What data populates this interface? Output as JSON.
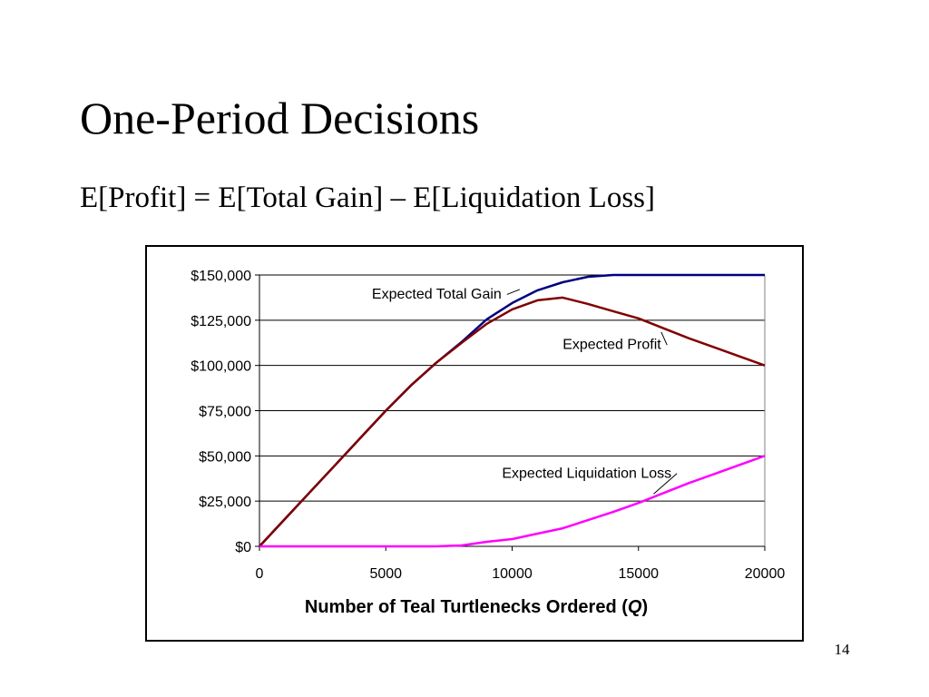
{
  "slide": {
    "title": "One-Period Decisions",
    "subtitle": "E[Profit] = E[Total Gain] – E[Liquidation Loss]",
    "page_number": "14"
  },
  "chart_data": {
    "type": "line",
    "xlabel_prefix": "Number of Teal Turtlenecks Ordered (",
    "xlabel_variable": "Q",
    "xlabel_suffix": ")",
    "ylabel": "",
    "xlim": [
      0,
      20000
    ],
    "ylim": [
      0,
      150000
    ],
    "x_ticks": [
      0,
      5000,
      10000,
      15000,
      20000
    ],
    "x_tick_labels": [
      "0",
      "5000",
      "10000",
      "15000",
      "20000"
    ],
    "y_ticks": [
      0,
      25000,
      50000,
      75000,
      100000,
      125000,
      150000
    ],
    "y_tick_labels": [
      "$0",
      "$25,000",
      "$50,000",
      "$75,000",
      "$100,000",
      "$125,000",
      "$150,000"
    ],
    "grid": "horizontal",
    "x": [
      0,
      1000,
      2000,
      3000,
      4000,
      5000,
      6000,
      7000,
      8000,
      9000,
      10000,
      11000,
      12000,
      13000,
      14000,
      15000,
      16000,
      17000,
      18000,
      19000,
      20000
    ],
    "series": [
      {
        "name": "Expected Total Gain",
        "color": "#000080",
        "values": [
          0,
          15000,
          30000,
          45000,
          60000,
          75000,
          89000,
          101500,
          113000,
          125500,
          134500,
          141500,
          146000,
          149000,
          150000,
          150000,
          150000,
          150000,
          150000,
          150000,
          150000
        ]
      },
      {
        "name": "Expected Profit",
        "color": "#800000",
        "values": [
          0,
          15000,
          30000,
          45000,
          60000,
          75000,
          89000,
          101500,
          112500,
          123000,
          131000,
          136000,
          137500,
          134000,
          130000,
          126000,
          120500,
          115000,
          110000,
          105000,
          100000
        ]
      },
      {
        "name": "Expected Liquidation Loss",
        "color": "#ff00ff",
        "values": [
          0,
          0,
          0,
          0,
          0,
          0,
          0,
          0,
          500,
          2500,
          4000,
          7000,
          10000,
          14500,
          19000,
          24000,
          29500,
          35000,
          40000,
          45000,
          50000
        ]
      }
    ],
    "annotations": [
      {
        "series": "Expected Total Gain",
        "text": "Expected Total Gain",
        "label_x": 4450,
        "label_y": 137000,
        "tip_x": 10300,
        "tip_y": 142000
      },
      {
        "series": "Expected Profit",
        "text": "Expected Profit",
        "label_x": 12000,
        "label_y": 109000,
        "tip_x": 15900,
        "tip_y": 118500
      },
      {
        "series": "Expected Liquidation Loss",
        "text": "Expected Liquidation Loss",
        "label_x": 9600,
        "label_y": 38000,
        "tip_x": 15600,
        "tip_y": 29000
      }
    ]
  }
}
